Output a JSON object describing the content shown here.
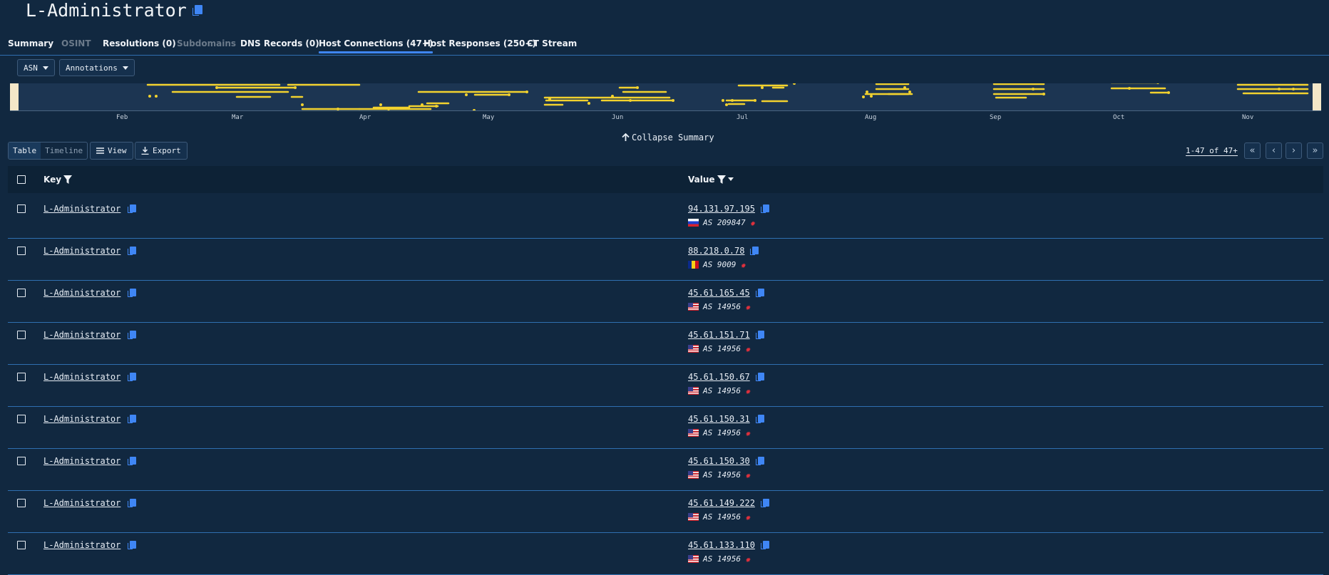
{
  "header": {
    "title": "L-Administrator"
  },
  "tabs": [
    {
      "label": "Summary",
      "state": "normal"
    },
    {
      "label": "OSINT",
      "state": "disabled"
    },
    {
      "label": "Resolutions (0)",
      "state": "normal"
    },
    {
      "label": "Subdomains",
      "state": "disabled"
    },
    {
      "label": "DNS Records (0)",
      "state": "normal"
    },
    {
      "label": "Host Connections (47+)",
      "state": "active"
    },
    {
      "label": "Host Responses (250+)",
      "state": "normal"
    },
    {
      "label": "CT Stream",
      "state": "normal"
    }
  ],
  "filters": {
    "asn_label": "ASN",
    "annotations_label": "Annotations"
  },
  "timeline": {
    "months": [
      "Feb",
      "Mar",
      "Apr",
      "May",
      "Jun",
      "Jul",
      "Aug",
      "Sep",
      "Oct",
      "Nov"
    ]
  },
  "collapse_label": "Collapse Summary",
  "toolbar": {
    "table_label": "Table",
    "timeline_label": "Timeline",
    "view_label": "View",
    "export_label": "Export",
    "pager_text": "1-47 of 47+"
  },
  "table": {
    "columns": {
      "key": "Key",
      "value": "Value"
    },
    "rows": [
      {
        "key": "L-Administrator",
        "ip": "94.131.97.195",
        "asn": "AS 209847",
        "flag": "ru"
      },
      {
        "key": "L-Administrator",
        "ip": "88.218.0.78",
        "asn": "AS 9009",
        "flag": "ro"
      },
      {
        "key": "L-Administrator",
        "ip": "45.61.165.45",
        "asn": "AS 14956",
        "flag": "us"
      },
      {
        "key": "L-Administrator",
        "ip": "45.61.151.71",
        "asn": "AS 14956",
        "flag": "us"
      },
      {
        "key": "L-Administrator",
        "ip": "45.61.150.67",
        "asn": "AS 14956",
        "flag": "us"
      },
      {
        "key": "L-Administrator",
        "ip": "45.61.150.31",
        "asn": "AS 14956",
        "flag": "us"
      },
      {
        "key": "L-Administrator",
        "ip": "45.61.150.30",
        "asn": "AS 14956",
        "flag": "us"
      },
      {
        "key": "L-Administrator",
        "ip": "45.61.149.222",
        "asn": "AS 14956",
        "flag": "us"
      },
      {
        "key": "L-Administrator",
        "ip": "45.61.133.110",
        "asn": "AS 14956",
        "flag": "us"
      }
    ]
  },
  "colors": {
    "background": "#112840",
    "accent": "#3f86f5",
    "timeline_mark": "#f2d22e",
    "tag": "#e0303c"
  }
}
